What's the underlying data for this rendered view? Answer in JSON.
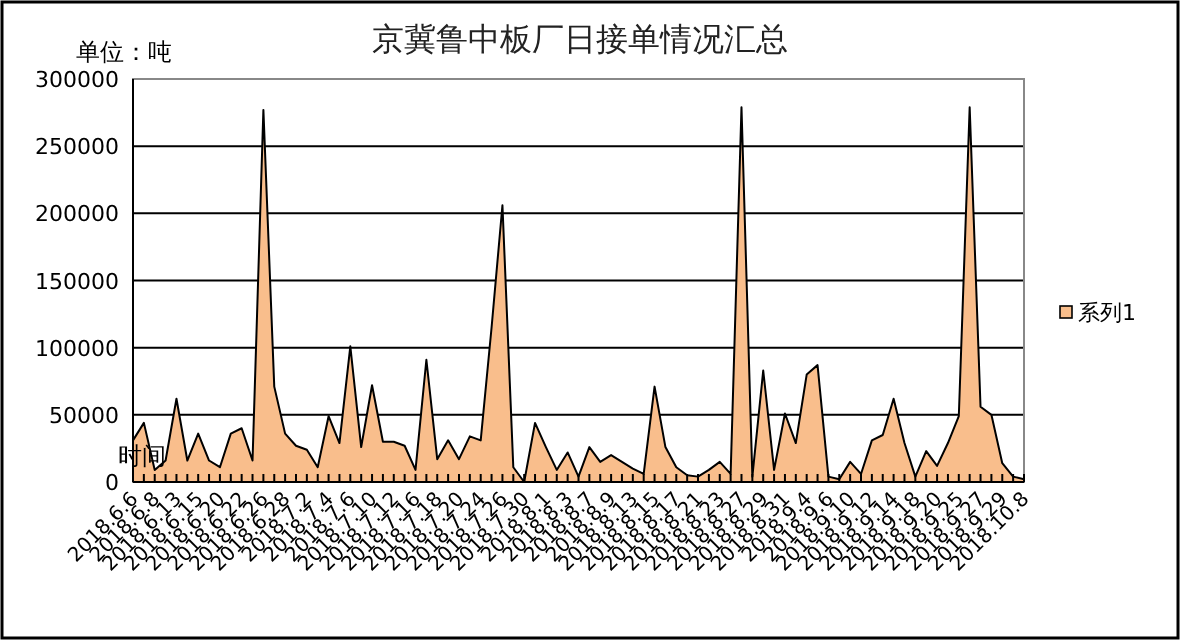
{
  "chart_data": {
    "type": "area",
    "title": "京冀鲁中板厂日接单情况汇总",
    "ylabel": "单位：吨",
    "xlabel": "时间",
    "categories": [
      "2018.6.6",
      null,
      "2018.6.8",
      null,
      "2018.6.13",
      null,
      "2018.6.15",
      null,
      "2018.6.20",
      null,
      "2018.6.22",
      null,
      "2018.6.26",
      null,
      "2018.6.28",
      null,
      "2018.7.2",
      null,
      "2018.7.4",
      null,
      "2018.7.6",
      null,
      "2018.7.10",
      null,
      "2018.7.12",
      null,
      "2018.7.16",
      null,
      "2018.7.18",
      null,
      "2018.7.20",
      null,
      "2018.7.24",
      null,
      "2018.7.26",
      null,
      "2018.7.30",
      null,
      "2018.8.1",
      null,
      "2018.8.3",
      null,
      "2018.8.7",
      null,
      "2018.8.9",
      null,
      "2018.8.13",
      null,
      "2018.8.15",
      null,
      "2018.8.17",
      null,
      "2018.8.21",
      null,
      "2018.8.23",
      null,
      "2018.8.27",
      null,
      "2018.8.29",
      null,
      "2018.8.31",
      null,
      "2018.9.4",
      null,
      "2018.9.6",
      null,
      "2018.9.10",
      null,
      "2018.9.12",
      null,
      "2018.9.14",
      null,
      "2018.9.18",
      null,
      "2018.9.20",
      null,
      "2018.9.25",
      null,
      "2018.9.27",
      null,
      "2018.9.29",
      null,
      "2018.10.8"
    ],
    "series": [
      {
        "name": "系列1",
        "color": "#f9be8c",
        "values": [
          31000,
          44000,
          9000,
          16000,
          62000,
          16000,
          36000,
          16000,
          11000,
          36000,
          40000,
          16000,
          277000,
          71000,
          36000,
          27000,
          24000,
          11000,
          49000,
          29000,
          101000,
          26000,
          72000,
          30000,
          30000,
          27000,
          9000,
          91000,
          17000,
          31000,
          17000,
          34000,
          31000,
          115000,
          206000,
          11000,
          0,
          44000,
          26000,
          9000,
          22000,
          4000,
          26000,
          15000,
          20000,
          15000,
          10000,
          6000,
          71000,
          26000,
          11000,
          5000,
          4000,
          9000,
          15000,
          6000,
          279000,
          4000,
          83000,
          9000,
          51000,
          29000,
          80000,
          87000,
          4000,
          2000,
          15000,
          6000,
          31000,
          35000,
          62000,
          29000,
          4000,
          23000,
          12000,
          29000,
          49000,
          279000,
          56000,
          50000,
          14000,
          4000,
          2000
        ]
      }
    ],
    "ylim": [
      0,
      300000
    ],
    "yticks": [
      0,
      50000,
      100000,
      150000,
      200000,
      250000,
      300000
    ],
    "grid": "y",
    "legend": "right"
  }
}
